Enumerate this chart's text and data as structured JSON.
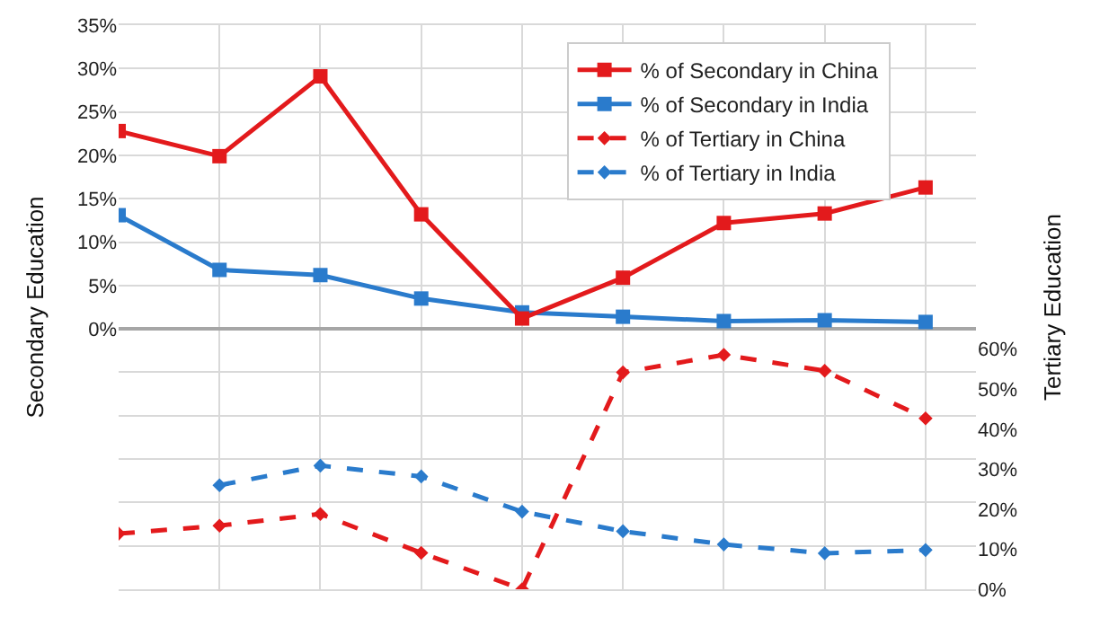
{
  "chart_data": {
    "type": "line",
    "categories": [
      null,
      null,
      null,
      null,
      null,
      null,
      null,
      null,
      null
    ],
    "ylabel": "Secondary Education",
    "y2label": "Tertiary Education",
    "ylim": [
      -30,
      35
    ],
    "yticks": [
      {
        "value": -30,
        "label": null
      },
      {
        "value": -25,
        "label": null
      },
      {
        "value": -20,
        "label": null
      },
      {
        "value": -15,
        "label": null
      },
      {
        "value": -10,
        "label": null
      },
      {
        "value": -5,
        "label": null
      },
      {
        "value": 0,
        "label": "0%"
      },
      {
        "value": 5,
        "label": "5%"
      },
      {
        "value": 10,
        "label": "10%"
      },
      {
        "value": 15,
        "label": "15%"
      },
      {
        "value": 20,
        "label": "20%"
      },
      {
        "value": 25,
        "label": "25%"
      },
      {
        "value": 30,
        "label": "30%"
      },
      {
        "value": 35,
        "label": "35%"
      }
    ],
    "y2lim": [
      0,
      141
    ],
    "y2ticks": [
      {
        "value": 0,
        "label": "0%"
      },
      {
        "value": 10,
        "label": "10%"
      },
      {
        "value": 20,
        "label": "20%"
      },
      {
        "value": 30,
        "label": "30%"
      },
      {
        "value": 40,
        "label": "40%"
      },
      {
        "value": 50,
        "label": "50%"
      },
      {
        "value": 60,
        "label": "60%"
      }
    ],
    "grid": true,
    "legend": "top right",
    "series": [
      {
        "name": "% of Secondary in China",
        "color": "#e31a1c",
        "marker": "square",
        "line_style": "solid",
        "values": [
          22.8,
          19.9,
          29.1,
          13.2,
          1.2,
          5.9,
          12.2,
          13.3,
          16.3
        ]
      },
      {
        "name": "% of Secondary in India",
        "color": "#2a7bcc",
        "marker": "square",
        "line_style": "solid",
        "values": [
          13.1,
          6.8,
          6.2,
          3.5,
          1.9,
          1.4,
          0.9,
          1.0,
          0.8
        ]
      },
      {
        "name": "% of Tertiary in China",
        "color": "#e31a1c",
        "marker": "diamond",
        "line_style": "dashed",
        "axis": "y2",
        "values": [
          13.9,
          15.9,
          18.8,
          9.1,
          0,
          54.2,
          58.6,
          54.6,
          42.7
        ]
      },
      {
        "name": "% of Tertiary in India",
        "color": "#2a7bcc",
        "marker": "diamond",
        "line_style": "dashed",
        "axis": "y2",
        "values": [
          null,
          26.0,
          30.9,
          28.2,
          19.4,
          14.5,
          11.2,
          9.0,
          9.8
        ]
      }
    ]
  }
}
